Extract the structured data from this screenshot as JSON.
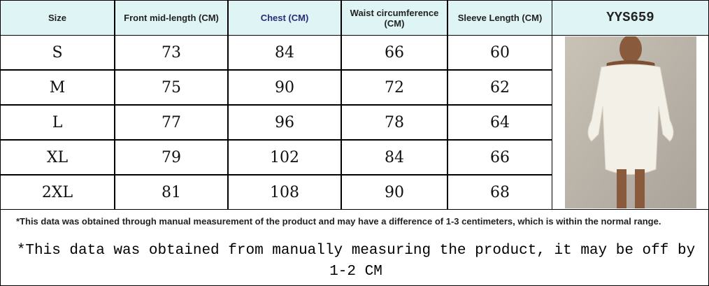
{
  "header": {
    "columns": [
      "Size",
      "Front mid-length (CM)",
      "Chest (CM)",
      "Waist circumference (CM)",
      "Sleeve Length (CM)"
    ],
    "code": "YYS659"
  },
  "table": {
    "rows": [
      [
        "S",
        73,
        84,
        66,
        60
      ],
      [
        "M",
        75,
        90,
        72,
        62
      ],
      [
        "L",
        77,
        96,
        78,
        64
      ],
      [
        "XL",
        79,
        102,
        84,
        66
      ],
      [
        "2XL",
        81,
        108,
        90,
        68
      ]
    ]
  },
  "notes": [
    "*This data was obtained through manual measurement of the product and may have a difference of 1-3 centimeters, which is within the normal range.",
    "*This data was obtained from manually measuring the product, it may be off by 1-2 CM"
  ]
}
